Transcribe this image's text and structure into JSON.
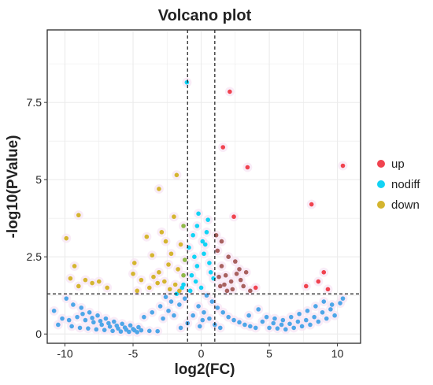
{
  "chart_data": {
    "type": "scatter",
    "title": "Volcano plot",
    "xlabel": "log2(FC)",
    "ylabel": "-log10(PValue)",
    "xlim": [
      -11.3,
      11.7
    ],
    "ylim": [
      -0.3,
      9.85
    ],
    "x_ticks": [
      -10,
      -5,
      0,
      5,
      10
    ],
    "x_tick_labels": [
      "-10",
      "-5",
      "0",
      "5",
      "10"
    ],
    "y_ticks": [
      0,
      2.5,
      5,
      7.5
    ],
    "y_tick_labels": [
      "0",
      "2.5",
      "5",
      "7.5"
    ],
    "grid": true,
    "legend_position": "right",
    "fc_threshold_lines": [
      -1,
      1
    ],
    "pvalue_threshold_line": 1.3,
    "colors": {
      "up": "#f0434f",
      "nodiff": "#12d3f4",
      "down": "#d4b52f",
      "nodiff_mid": "#4ea6e8",
      "up_mid": "#a8615f",
      "down_mid": "#8fb849",
      "halo": "#f7e4f4",
      "grid": "#ebebeb",
      "threshold": "#1a1a1a"
    },
    "series": [
      {
        "name": "up",
        "points": [
          [
            2.1,
            7.85
          ],
          [
            1.6,
            6.05
          ],
          [
            3.4,
            5.4
          ],
          [
            10.4,
            5.45
          ],
          [
            8.1,
            4.2
          ],
          [
            2.4,
            3.8
          ],
          [
            9.0,
            2.0
          ],
          [
            8.6,
            1.7
          ],
          [
            9.3,
            1.45
          ],
          [
            7.7,
            1.55
          ],
          [
            2.0,
            2.5
          ],
          [
            1.5,
            2.2
          ],
          [
            2.5,
            2.35
          ],
          [
            1.8,
            1.9
          ],
          [
            2.9,
            1.75
          ],
          [
            1.2,
            2.7
          ],
          [
            3.1,
            1.55
          ],
          [
            1.4,
            1.55
          ],
          [
            2.3,
            1.45
          ],
          [
            1.1,
            3.2
          ],
          [
            2.6,
            1.95
          ],
          [
            1.7,
            1.6
          ],
          [
            3.6,
            1.4
          ],
          [
            2.8,
            2.1
          ],
          [
            1.3,
            1.85
          ],
          [
            2.2,
            1.7
          ],
          [
            4.0,
            1.5
          ],
          [
            1.9,
            1.4
          ],
          [
            3.3,
            2.0
          ],
          [
            1.5,
            3.0
          ]
        ]
      },
      {
        "name": "nodiff",
        "points": [
          [
            -1.05,
            8.15
          ],
          [
            -0.2,
            3.9
          ],
          [
            0.5,
            3.7
          ],
          [
            -0.6,
            3.2
          ],
          [
            0.3,
            2.9
          ],
          [
            -1.3,
            1.6
          ],
          [
            0.9,
            1.8
          ],
          [
            -10.8,
            0.75
          ],
          [
            -9.9,
            1.15
          ],
          [
            -9.4,
            0.95
          ],
          [
            -8.8,
            0.85
          ],
          [
            -8.2,
            0.7
          ],
          [
            -7.6,
            0.6
          ],
          [
            -7.0,
            0.5
          ],
          [
            -6.4,
            0.4
          ],
          [
            -5.8,
            0.33
          ],
          [
            -5.2,
            0.28
          ],
          [
            -4.6,
            0.22
          ],
          [
            -9.5,
            0.25
          ],
          [
            -8.9,
            0.2
          ],
          [
            -8.3,
            0.18
          ],
          [
            -7.7,
            0.15
          ],
          [
            -7.1,
            0.13
          ],
          [
            -6.5,
            0.1
          ],
          [
            -5.9,
            0.08
          ],
          [
            -5.3,
            0.07
          ],
          [
            -4.7,
            0.06
          ],
          [
            -9.1,
            0.55
          ],
          [
            -8.5,
            0.45
          ],
          [
            -7.9,
            0.38
          ],
          [
            -7.3,
            0.3
          ],
          [
            -6.7,
            0.24
          ],
          [
            -6.1,
            0.18
          ],
          [
            -5.5,
            0.14
          ],
          [
            -4.9,
            0.12
          ],
          [
            -8.7,
            0.65
          ],
          [
            -8.0,
            0.52
          ],
          [
            -7.4,
            0.42
          ],
          [
            -6.8,
            0.35
          ],
          [
            -6.2,
            0.27
          ],
          [
            -5.6,
            0.21
          ],
          [
            -5.0,
            0.16
          ],
          [
            -4.4,
            0.12
          ],
          [
            -3.8,
            0.1
          ],
          [
            -3.2,
            0.09
          ],
          [
            -4.2,
            0.55
          ],
          [
            -3.6,
            0.7
          ],
          [
            -3.0,
            0.9
          ],
          [
            -2.6,
            1.2
          ],
          [
            -2.2,
            1.05
          ],
          [
            -1.8,
            1.3
          ],
          [
            -1.4,
            1.5
          ],
          [
            -2.8,
            0.5
          ],
          [
            -2.4,
            0.75
          ],
          [
            -2.0,
            0.6
          ],
          [
            -1.6,
            0.95
          ],
          [
            -1.2,
            1.15
          ],
          [
            -0.8,
            1.4
          ],
          [
            -0.4,
            1.7
          ],
          [
            0.0,
            1.5
          ],
          [
            0.4,
            1.25
          ],
          [
            0.8,
            1.05
          ],
          [
            1.2,
            0.85
          ],
          [
            1.6,
            0.7
          ],
          [
            2.0,
            0.55
          ],
          [
            2.4,
            0.45
          ],
          [
            2.8,
            0.38
          ],
          [
            3.2,
            0.3
          ],
          [
            3.6,
            0.25
          ],
          [
            4.0,
            0.2
          ],
          [
            -1.0,
            0.35
          ],
          [
            -0.6,
            0.6
          ],
          [
            -0.2,
            0.9
          ],
          [
            0.2,
            0.7
          ],
          [
            0.6,
            0.5
          ],
          [
            1.0,
            0.3
          ],
          [
            1.4,
            0.2
          ],
          [
            -1.5,
            0.2
          ],
          [
            -0.1,
            0.25
          ],
          [
            0.1,
            0.45
          ],
          [
            -0.3,
            2.2
          ],
          [
            0.2,
            2.6
          ],
          [
            -0.5,
            2.5
          ],
          [
            0.6,
            2.3
          ],
          [
            -0.7,
            1.9
          ],
          [
            0.7,
            2.0
          ],
          [
            -0.9,
            2.8
          ],
          [
            0.4,
            3.3
          ],
          [
            -0.3,
            3.5
          ],
          [
            0.1,
            3.0
          ],
          [
            4.8,
            0.55
          ],
          [
            5.4,
            0.5
          ],
          [
            6.0,
            0.45
          ],
          [
            6.6,
            0.55
          ],
          [
            7.2,
            0.65
          ],
          [
            7.8,
            0.75
          ],
          [
            8.4,
            0.9
          ],
          [
            9.0,
            1.05
          ],
          [
            9.6,
            0.95
          ],
          [
            10.2,
            1.0
          ],
          [
            5.0,
            0.2
          ],
          [
            5.6,
            0.18
          ],
          [
            6.2,
            0.15
          ],
          [
            6.8,
            0.2
          ],
          [
            7.4,
            0.25
          ],
          [
            8.0,
            0.3
          ],
          [
            8.6,
            0.4
          ],
          [
            9.2,
            0.5
          ],
          [
            9.8,
            0.6
          ],
          [
            5.3,
            0.35
          ],
          [
            5.9,
            0.3
          ],
          [
            6.5,
            0.33
          ],
          [
            7.1,
            0.4
          ],
          [
            7.7,
            0.45
          ],
          [
            8.3,
            0.55
          ],
          [
            8.9,
            0.7
          ],
          [
            9.5,
            0.8
          ],
          [
            10.4,
            1.15
          ],
          [
            4.5,
            0.4
          ],
          [
            3.5,
            0.6
          ],
          [
            -10.2,
            0.5
          ],
          [
            -9.7,
            0.45
          ],
          [
            -10.5,
            0.3
          ],
          [
            4.2,
            0.8
          ]
        ]
      },
      {
        "name": "down",
        "points": [
          [
            -1.8,
            5.15
          ],
          [
            -3.1,
            4.7
          ],
          [
            -9.9,
            3.1
          ],
          [
            -9.0,
            3.85
          ],
          [
            -2.0,
            3.8
          ],
          [
            -1.3,
            3.5
          ],
          [
            -2.9,
            3.3
          ],
          [
            -2.6,
            3.0
          ],
          [
            -4.0,
            3.15
          ],
          [
            -1.5,
            2.9
          ],
          [
            -3.6,
            2.55
          ],
          [
            -2.2,
            2.6
          ],
          [
            -1.2,
            2.4
          ],
          [
            -4.9,
            2.3
          ],
          [
            -9.3,
            2.2
          ],
          [
            -3.1,
            2.0
          ],
          [
            -2.4,
            2.25
          ],
          [
            -1.7,
            2.1
          ],
          [
            -3.5,
            1.85
          ],
          [
            -2.7,
            1.7
          ],
          [
            -1.9,
            1.6
          ],
          [
            -1.3,
            1.9
          ],
          [
            -4.4,
            1.75
          ],
          [
            -5.0,
            1.95
          ],
          [
            -9.6,
            1.8
          ],
          [
            -8.5,
            1.75
          ],
          [
            -8.0,
            1.65
          ],
          [
            -7.5,
            1.7
          ],
          [
            -6.9,
            1.5
          ],
          [
            -3.8,
            1.5
          ],
          [
            -2.3,
            1.45
          ],
          [
            -1.6,
            1.4
          ],
          [
            -9.0,
            1.55
          ],
          [
            -4.7,
            1.4
          ],
          [
            -3.2,
            1.65
          ]
        ]
      }
    ]
  }
}
